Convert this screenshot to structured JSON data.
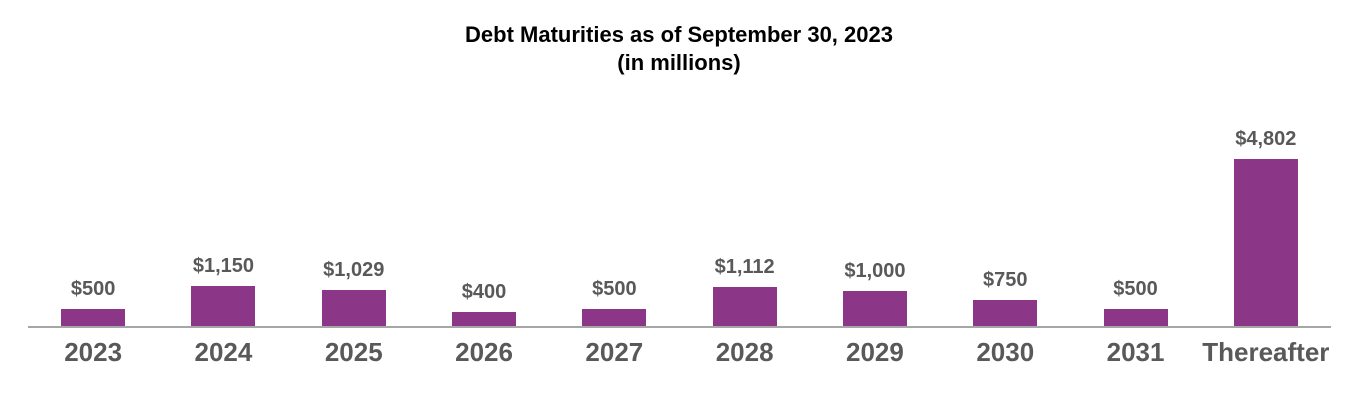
{
  "title": {
    "line1": "Debt Maturities as of September 30, 2023",
    "line2": "(in millions)"
  },
  "chart_data": {
    "type": "bar",
    "title": "Debt Maturities as of September 30, 2023 (in millions)",
    "categories": [
      "2023",
      "2024",
      "2025",
      "2026",
      "2027",
      "2028",
      "2029",
      "2030",
      "2031",
      "Thereafter"
    ],
    "values": [
      500,
      1150,
      1029,
      400,
      500,
      1112,
      1000,
      750,
      500,
      4802
    ],
    "value_labels": [
      "$500",
      "$1,150",
      "$1,029",
      "$400",
      "$500",
      "$1,112",
      "$1,000",
      "$750",
      "$500",
      "$4,802"
    ],
    "xlabel": "",
    "ylabel": "",
    "ylim": [
      0,
      4802
    ],
    "grid": false,
    "legend": false,
    "y_axis_visible": false,
    "colors": {
      "bar": "#8C3687",
      "data_label": "#595959",
      "category_label": "#595959",
      "axis_line": "#a6a6a6",
      "title": "#000000",
      "background": "#ffffff"
    }
  }
}
